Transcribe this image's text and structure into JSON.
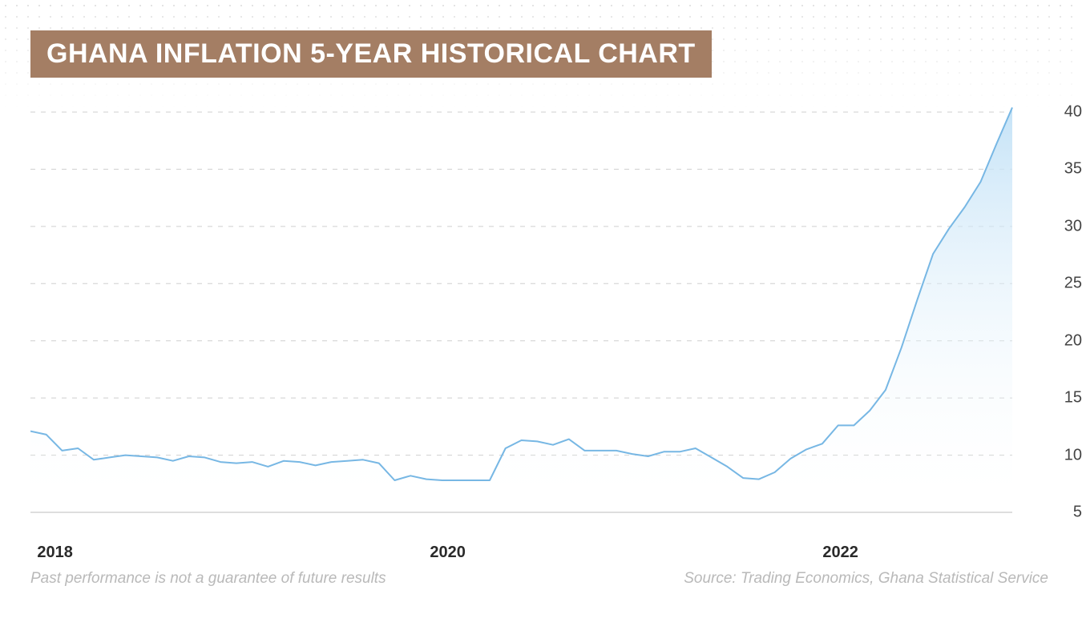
{
  "title": "GHANA INFLATION 5-YEAR HISTORICAL CHART",
  "title_bg": "#a47e64",
  "title_color": "#ffffff",
  "title_fontsize": 34,
  "background_color": "#ffffff",
  "dot_color": "#d0d0d0",
  "disclaimer": "Past performance is not a guarantee of future results",
  "source": "Source: Trading Economics, Ghana Statistical Service",
  "footer_color": "#b9b9b9",
  "footer_fontsize": 19,
  "chart": {
    "type": "area",
    "ymin": 5,
    "ymax": 40,
    "ytick_step": 5,
    "yticks": [
      5,
      10,
      15,
      20,
      25,
      30,
      35,
      40
    ],
    "xticks": [
      {
        "pos": 0.025,
        "label": "2018"
      },
      {
        "pos": 0.425,
        "label": "2020"
      },
      {
        "pos": 0.825,
        "label": "2022"
      }
    ],
    "grid_color": "#cfcfcf",
    "grid_dash": "6,7",
    "axis_color": "#333333",
    "line_color": "#77b7e4",
    "line_width": 2,
    "fill_top_color": "#bfe0f6",
    "fill_bottom_color": "#ffffff",
    "fill_opacity": 0.9,
    "tick_label_color": "#444444",
    "tick_label_fontsize": 20,
    "xtick_label_color": "#2a2a2a",
    "xtick_label_fontsize": 20,
    "values": [
      12.1,
      11.8,
      10.4,
      10.6,
      9.6,
      9.8,
      10.0,
      9.9,
      9.8,
      9.5,
      9.9,
      9.8,
      9.4,
      9.3,
      9.4,
      9.0,
      9.5,
      9.4,
      9.1,
      9.4,
      9.5,
      9.6,
      9.3,
      7.8,
      8.2,
      7.9,
      7.8,
      7.8,
      7.8,
      7.8,
      10.6,
      11.3,
      11.2,
      10.9,
      11.4,
      10.4,
      10.4,
      10.4,
      10.1,
      9.9,
      10.3,
      10.3,
      10.6,
      9.8,
      9.0,
      8.0,
      7.9,
      8.5,
      9.7,
      10.5,
      11.0,
      12.6,
      12.6,
      13.9,
      15.7,
      19.4,
      23.6,
      27.6,
      29.8,
      31.7,
      33.9,
      37.2,
      40.4
    ]
  }
}
